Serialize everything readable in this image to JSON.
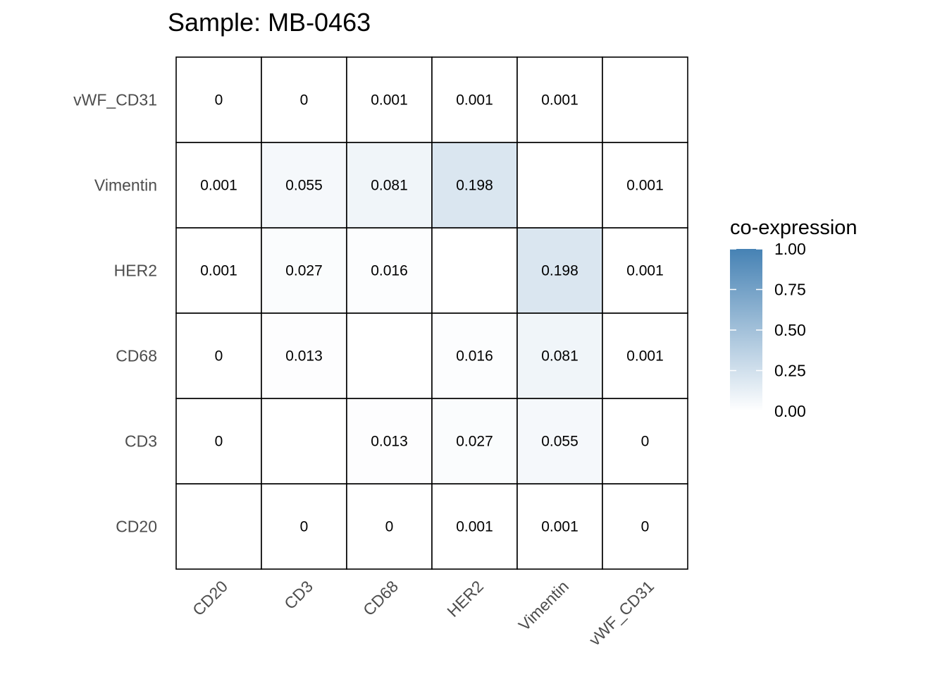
{
  "chart_data": {
    "type": "heatmap",
    "title": "Sample: MB-0463",
    "xlabel": "",
    "ylabel": "",
    "x_categories": [
      "CD20",
      "CD3",
      "CD68",
      "HER2",
      "Vimentin",
      "vWF_CD31"
    ],
    "y_categories": [
      "CD20",
      "CD3",
      "CD68",
      "HER2",
      "Vimentin",
      "vWF_CD31"
    ],
    "values": [
      [
        null,
        0,
        0,
        0.001,
        0.001,
        0
      ],
      [
        0,
        null,
        0.013,
        0.027,
        0.055,
        0
      ],
      [
        0,
        0.013,
        null,
        0.016,
        0.081,
        0.001
      ],
      [
        0.001,
        0.027,
        0.016,
        null,
        0.198,
        0.001
      ],
      [
        0.001,
        0.055,
        0.081,
        0.198,
        null,
        0.001
      ],
      [
        0,
        0,
        0.001,
        0.001,
        0.001,
        null
      ]
    ],
    "labels": [
      [
        "",
        "0",
        "0",
        "0.001",
        "0.001",
        "0"
      ],
      [
        "0",
        "",
        "0.013",
        "0.027",
        "0.055",
        "0"
      ],
      [
        "0",
        "0.013",
        "",
        "0.016",
        "0.081",
        "0.001"
      ],
      [
        "0.001",
        "0.027",
        "0.016",
        "",
        "0.198",
        "0.001"
      ],
      [
        "0.001",
        "0.055",
        "0.081",
        "0.198",
        "",
        "0.001"
      ],
      [
        "0",
        "0",
        "0.001",
        "0.001",
        "0.001",
        ""
      ]
    ],
    "legend": {
      "title": "co-expression",
      "position": "right",
      "ticks": [
        "0.00",
        "0.25",
        "0.50",
        "0.75",
        "1.00"
      ],
      "tick_values": [
        0,
        0.25,
        0.5,
        0.75,
        1
      ],
      "range": [
        0,
        1
      ],
      "low_color": "#ffffff",
      "high_color": "#4682b4"
    },
    "grid": false
  }
}
